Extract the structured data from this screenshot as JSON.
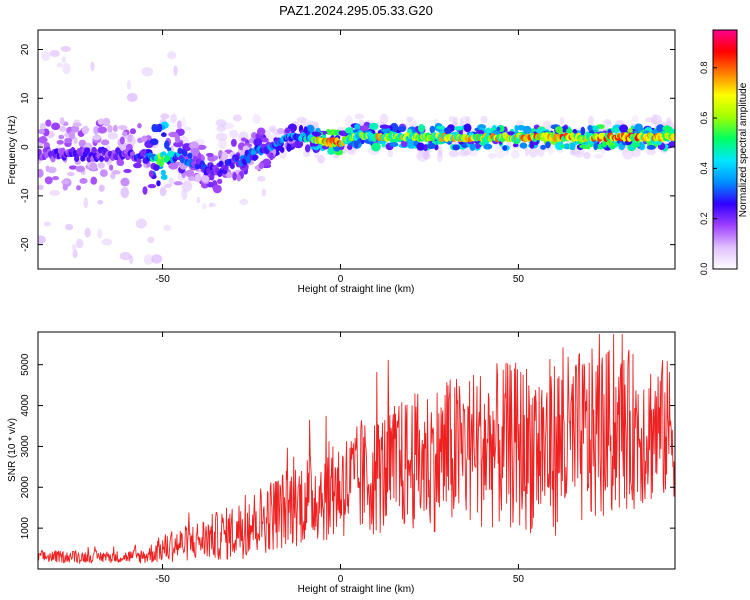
{
  "title": "PAZ1.2024.295.05.33.G20",
  "chart_data": [
    {
      "type": "heatmap",
      "xlabel": "Height of straight line (km)",
      "ylabel": "Frequency (Hz)",
      "xlim": [
        -85,
        94
      ],
      "ylim": [
        -25,
        24
      ],
      "xticks": [
        -50,
        0,
        50
      ],
      "yticks": [
        -20,
        -10,
        0,
        10,
        20
      ],
      "colorbar": {
        "label": "Normalized spectral amplitude",
        "range": [
          0,
          0.95
        ],
        "ticks": [
          "0.0",
          "0.2",
          "0.4",
          "0.6",
          "0.8"
        ],
        "tick_values": [
          0,
          0.2,
          0.4,
          0.6,
          0.8
        ],
        "colors": [
          "#ffffff",
          "#e0c0ff",
          "#a040ff",
          "#3000ff",
          "#0090ff",
          "#00e8ff",
          "#00ff60",
          "#a0ff00",
          "#ffff00",
          "#ff8000",
          "#ff0000",
          "#ff0090"
        ]
      },
      "ridge": {
        "x": [
          -85,
          -75,
          -65,
          -55,
          -50,
          -45,
          -40,
          -35,
          -30,
          -25,
          -20,
          -15,
          -10,
          -5,
          0,
          5,
          10,
          20,
          30,
          40,
          50,
          60,
          70,
          80,
          94
        ],
        "frequency": [
          -1.5,
          -1.5,
          -1.5,
          -2.0,
          -2.5,
          -1.5,
          -3.5,
          -5.0,
          -3.0,
          -1.5,
          0.0,
          2.0,
          2.0,
          1.0,
          1.0,
          2.5,
          2.0,
          2.0,
          2.0,
          2.0,
          2.0,
          2.0,
          2.0,
          2.0,
          2.0
        ],
        "amplitude": [
          0.25,
          0.25,
          0.25,
          0.3,
          0.7,
          0.35,
          0.3,
          0.3,
          0.3,
          0.35,
          0.35,
          0.4,
          0.45,
          0.85,
          0.85,
          0.6,
          0.75,
          0.7,
          0.75,
          0.75,
          0.8,
          0.85,
          0.8,
          0.85,
          0.8
        ]
      }
    },
    {
      "type": "line",
      "xlabel": "Height of straight line (km)",
      "ylabel": "SNR (10 * v/v)",
      "xlim": [
        -85,
        94
      ],
      "ylim": [
        0,
        5800
      ],
      "xticks": [
        -50,
        0,
        50
      ],
      "yticks": [
        1000,
        2000,
        3000,
        4000,
        5000
      ],
      "color": "#ee2020",
      "envelope": {
        "x": [
          -85,
          -60,
          -55,
          -50,
          -40,
          -30,
          -20,
          -10,
          0,
          10,
          20,
          30,
          40,
          50,
          60,
          70,
          80,
          94
        ],
        "mean": [
          300,
          300,
          320,
          500,
          700,
          900,
          1300,
          1700,
          2000,
          2300,
          2600,
          2800,
          3000,
          3000,
          3000,
          3200,
          3400,
          3400
        ],
        "amplitude": [
          150,
          150,
          200,
          350,
          500,
          700,
          900,
          1100,
          1300,
          1500,
          1700,
          1900,
          2000,
          2100,
          2200,
          2200,
          2000,
          1700
        ]
      }
    }
  ]
}
